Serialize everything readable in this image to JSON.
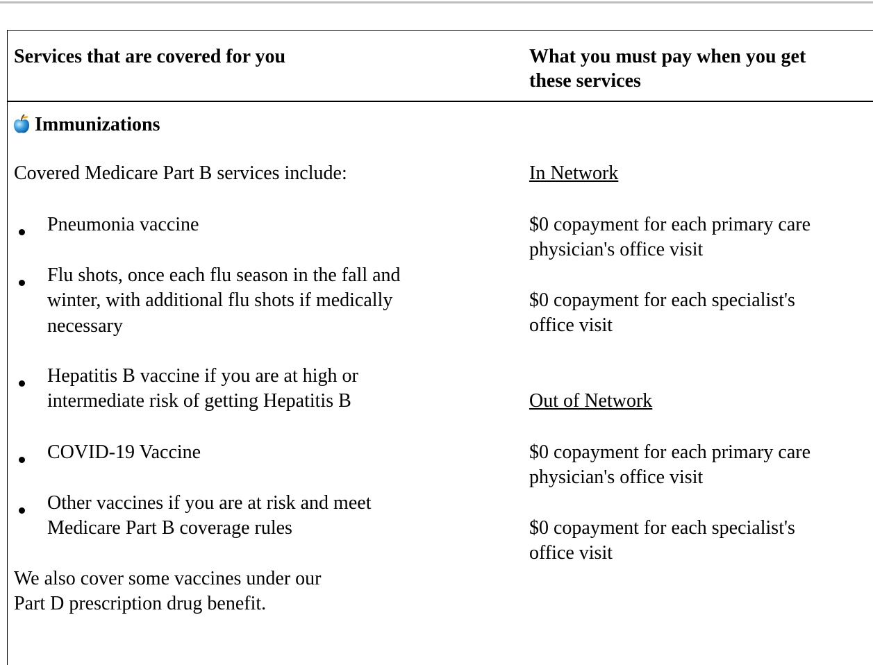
{
  "header": {
    "left": "Services that are covered for you",
    "right": [
      "What you must pay when you get",
      "these services"
    ]
  },
  "service": {
    "title": "Immunizations",
    "intro": "Covered Medicare Part B services include:",
    "items": [
      [
        "Pneumonia vaccine"
      ],
      [
        "Flu shots, once each flu season in the fall and",
        "winter, with additional flu shots if medically",
        "necessary"
      ],
      [
        "Hepatitis B vaccine if you are at high or",
        "intermediate risk of getting Hepatitis B"
      ],
      [
        "COVID-19 Vaccine"
      ],
      [
        "Other vaccines if you are at risk and meet",
        "Medicare Part B coverage rules"
      ]
    ],
    "note": [
      "We also cover some vaccines under our",
      "Part D prescription drug benefit."
    ]
  },
  "costs": [
    {
      "heading": "In Network",
      "lines": [
        [
          "$0 copayment for each primary care",
          "physician's office visit"
        ],
        [
          "$0 copayment for each specialist's",
          "office visit"
        ]
      ]
    },
    {
      "heading": "Out of Network",
      "lines": [
        [
          "$0 copayment for each primary care",
          "physician's office visit"
        ],
        [
          "$0 copayment for each specialist's",
          "office visit"
        ]
      ]
    }
  ]
}
